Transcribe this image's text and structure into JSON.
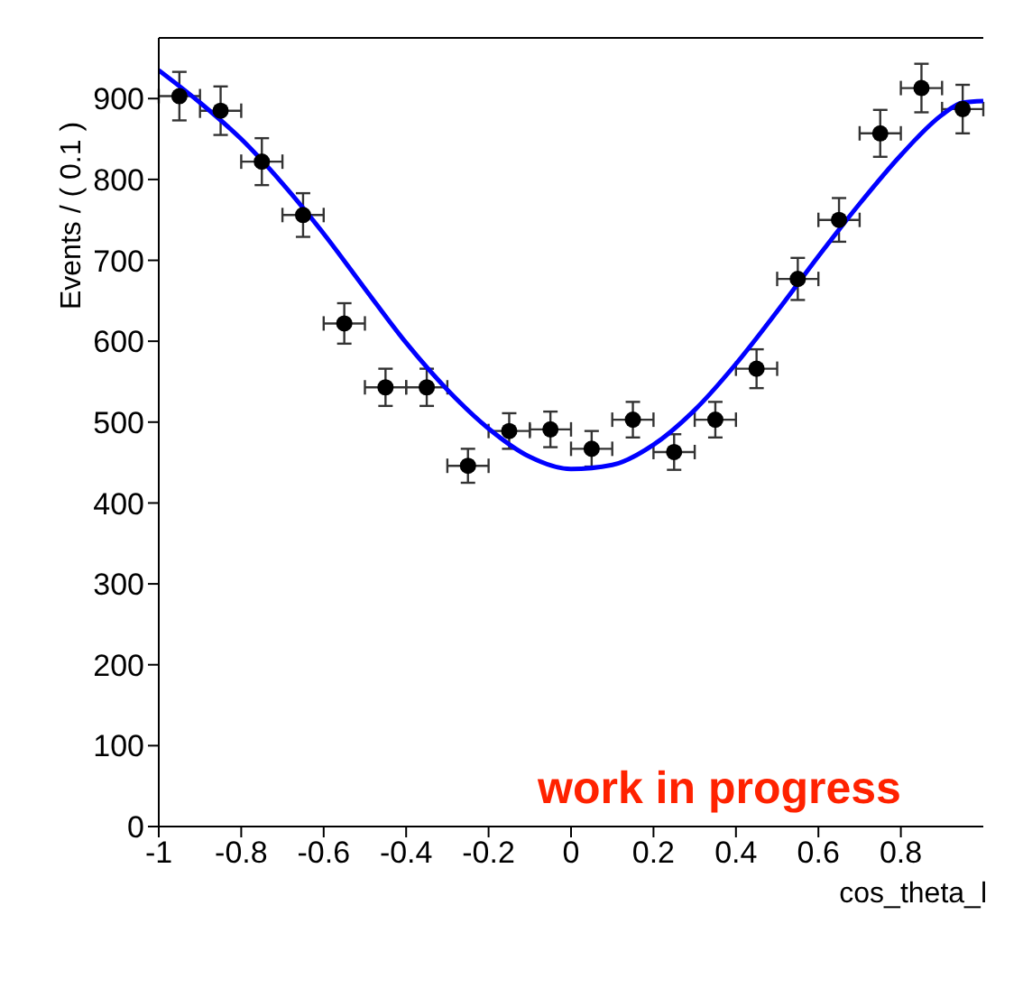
{
  "chart_data": {
    "type": "scatter",
    "xlabel": "cos_theta_l",
    "ylabel": "Events / ( 0.1 )",
    "x": [
      -0.95,
      -0.85,
      -0.75,
      -0.65,
      -0.55,
      -0.45,
      -0.35,
      -0.25,
      -0.15,
      -0.05,
      0.05,
      0.15,
      0.25,
      0.35,
      0.45,
      0.55,
      0.65,
      0.75,
      0.85,
      0.95
    ],
    "series": [
      {
        "color": "#000000",
        "marker": "circle",
        "values": [
          903,
          885,
          822,
          756,
          622,
          543,
          543,
          446,
          489,
          491,
          467,
          503,
          463,
          503,
          566,
          677,
          750,
          857,
          913,
          887
        ],
        "errors": [
          30,
          30,
          29,
          27,
          25,
          23,
          23,
          21,
          22,
          22,
          22,
          22,
          22,
          22,
          24,
          26,
          27,
          29,
          30,
          30
        ],
        "xerrors": [
          0.05,
          0.05,
          0.05,
          0.05,
          0.05,
          0.05,
          0.05,
          0.05,
          0.05,
          0.05,
          0.05,
          0.05,
          0.05,
          0.05,
          0.05,
          0.05,
          0.05,
          0.05,
          0.05,
          0.05
        ]
      },
      {
        "type": "line",
        "color": "#0000ff",
        "marker": "none",
        "line_style": "solid",
        "x": [
          -1,
          -0.9,
          -0.8,
          -0.7,
          -0.6,
          -0.5,
          -0.4,
          -0.3,
          -0.2,
          -0.1,
          0,
          0.1,
          0.2,
          0.3,
          0.4,
          0.5,
          0.6,
          0.7,
          0.8,
          0.9,
          0.95,
          1
        ],
        "values": [
          935,
          895,
          850,
          795,
          733,
          665,
          598,
          540,
          492,
          457,
          442,
          447,
          472,
          515,
          572,
          637,
          705,
          770,
          830,
          880,
          895,
          897
        ]
      }
    ],
    "xlim": [
      -1,
      1
    ],
    "xticks": [
      -1,
      -0.8,
      -0.6,
      -0.4,
      -0.2,
      0,
      0.2,
      0.4,
      0.6,
      0.8
    ],
    "ylim": [
      0,
      975
    ],
    "yticks": [
      0,
      100,
      200,
      300,
      400,
      500,
      600,
      700,
      800,
      900
    ],
    "annotations": [
      "work in progress"
    ]
  }
}
